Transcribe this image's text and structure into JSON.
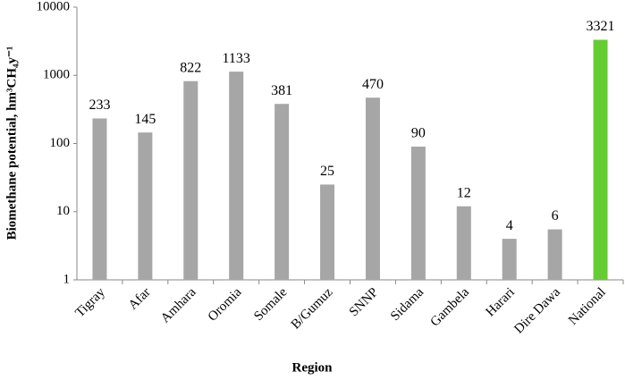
{
  "chart_data": {
    "type": "bar",
    "x_label": "Region",
    "y_label": "Biomethane potential, hm³CH₄y⁻¹",
    "categories": [
      "Tigray",
      "Afar",
      "Amhara",
      "Oromia",
      "Somale",
      "B/Gumuz",
      "SNNP",
      "Sidama",
      "Gambela",
      "Harari",
      "Dire Dawa",
      "National"
    ],
    "values": [
      233,
      145,
      822,
      1133,
      381,
      25,
      470,
      90,
      12,
      4,
      5.5,
      3321
    ],
    "value_labels": [
      "233",
      "145",
      "822",
      "1133",
      "381",
      "25",
      "470",
      "90",
      "12",
      "4",
      "6",
      "3321"
    ],
    "colors": [
      "#a6a6a6",
      "#a6a6a6",
      "#a6a6a6",
      "#a6a6a6",
      "#a6a6a6",
      "#a6a6a6",
      "#a6a6a6",
      "#a6a6a6",
      "#a6a6a6",
      "#a6a6a6",
      "#a6a6a6",
      "#66cc33"
    ],
    "log_scale": true,
    "ylim": [
      1,
      10000
    ],
    "yticks": [
      1,
      10,
      100,
      1000,
      10000
    ],
    "grid": false
  }
}
